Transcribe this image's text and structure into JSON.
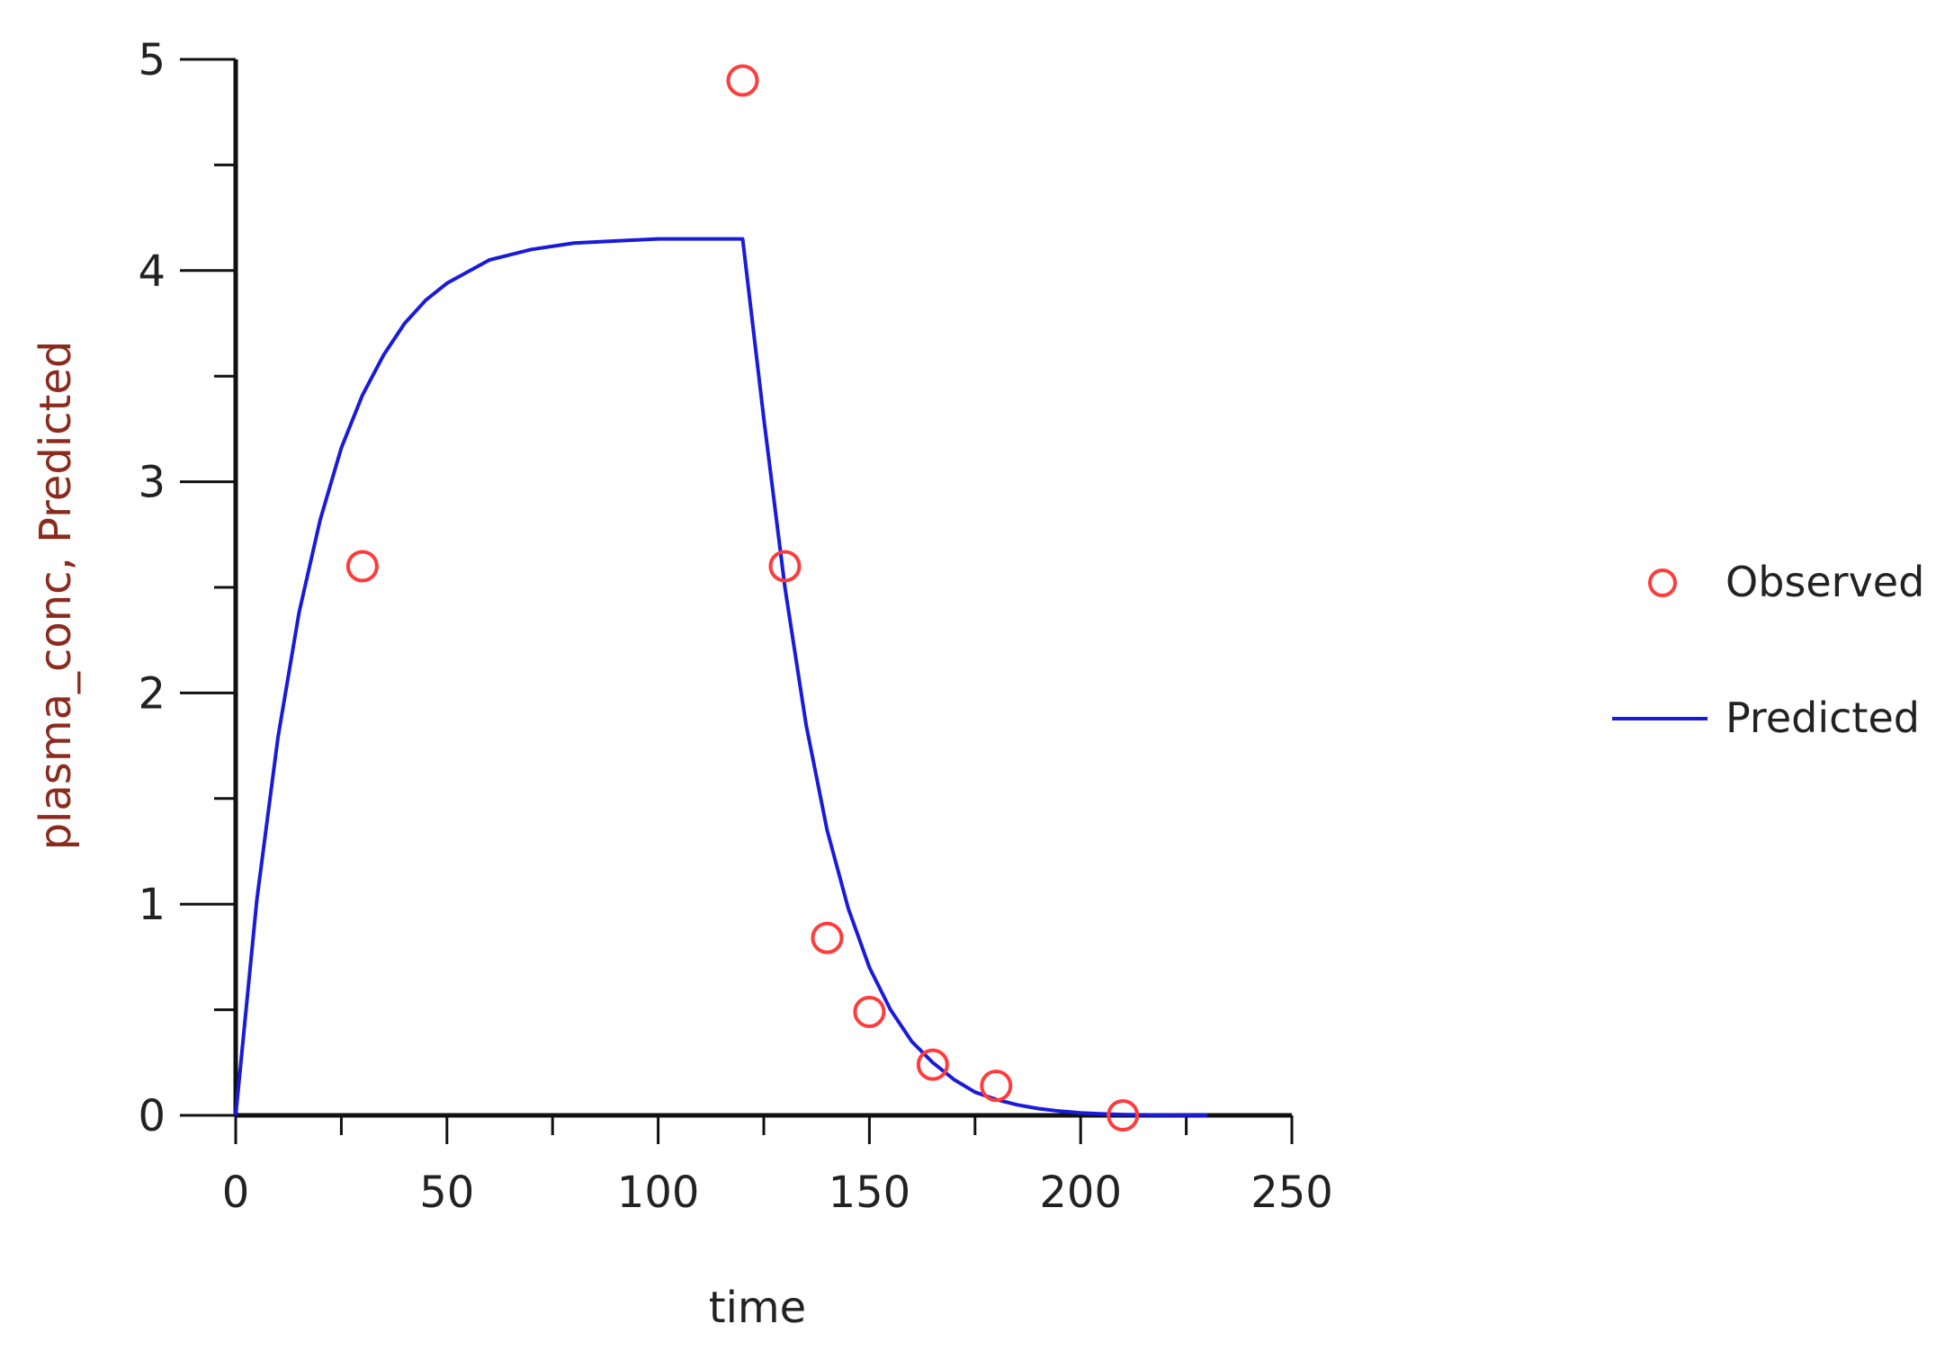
{
  "chart_data": {
    "type": "scatter",
    "xlabel": "time",
    "ylabel": "plasma_conc, Predicted",
    "xlim": [
      0,
      250
    ],
    "ylim": [
      0,
      5
    ],
    "x_ticks": [
      0,
      50,
      100,
      150,
      200,
      250
    ],
    "y_ticks": [
      0,
      1,
      2,
      3,
      4,
      5
    ],
    "x_minor_step": 25,
    "y_minor_step": 0.5,
    "grid": false,
    "legend_position": "right",
    "colors": {
      "observed": "#ff3b3b",
      "predicted": "#1a1adb",
      "axis": "#111111",
      "ylabel": "#8a2b1e"
    },
    "series": [
      {
        "name": "Observed",
        "kind": "scatter",
        "marker": "open-circle",
        "x": [
          30,
          120,
          130,
          140,
          150,
          165,
          180,
          210
        ],
        "y": [
          2.6,
          4.9,
          2.6,
          0.84,
          0.49,
          0.24,
          0.14,
          0.0
        ]
      },
      {
        "name": "Predicted",
        "kind": "line",
        "x": [
          0,
          5,
          10,
          15,
          20,
          25,
          30,
          35,
          40,
          45,
          50,
          60,
          70,
          80,
          90,
          100,
          110,
          120,
          125,
          130,
          135,
          140,
          145,
          150,
          155,
          160,
          165,
          170,
          175,
          180,
          185,
          190,
          195,
          200,
          205,
          210,
          220,
          230
        ],
        "y": [
          0.0,
          1.02,
          1.79,
          2.38,
          2.82,
          3.16,
          3.41,
          3.6,
          3.75,
          3.86,
          3.94,
          4.05,
          4.1,
          4.13,
          4.14,
          4.15,
          4.15,
          4.15,
          3.3,
          2.5,
          1.85,
          1.35,
          0.98,
          0.7,
          0.5,
          0.35,
          0.25,
          0.17,
          0.11,
          0.075,
          0.05,
          0.032,
          0.02,
          0.012,
          0.007,
          0.004,
          0.001,
          0.0
        ]
      }
    ]
  }
}
